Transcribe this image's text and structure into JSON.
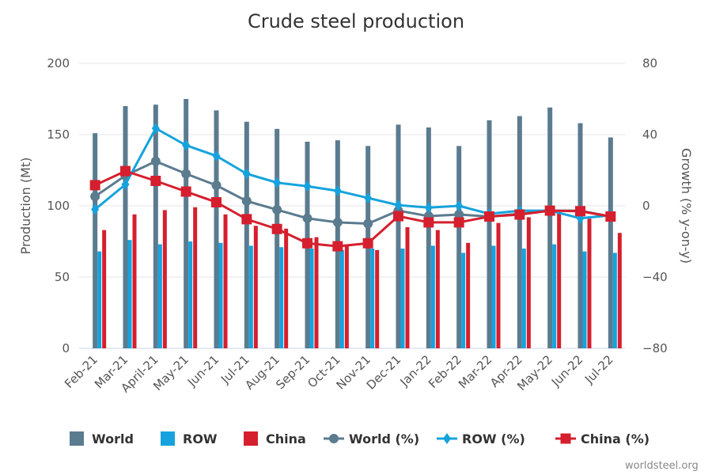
{
  "chart_data": {
    "type": "bar",
    "title": "Crude steel production",
    "ylabel": "Production (Mt)",
    "y2label": "Growth (% y-on-y)",
    "ylim": [
      0,
      200
    ],
    "y2lim": [
      -80,
      80
    ],
    "yticks": [
      "0",
      "50",
      "100",
      "150",
      "200"
    ],
    "y2ticks": [
      "−80",
      "−40",
      "0",
      "40",
      "80"
    ],
    "categories": [
      "Feb-21",
      "Mar-21",
      "April-21",
      "May-21",
      "Jun-21",
      "Jul-21",
      "Aug-21",
      "Sep-21",
      "Oct-21",
      "Nov-21",
      "Dec-21",
      "Jan-22",
      "Feb-22",
      "Mar-22",
      "Apr-22",
      "May-22",
      "Jun-22",
      "Jul-22"
    ],
    "series": [
      {
        "name": "World",
        "kind": "bar",
        "axis": "left",
        "color": "#5b7b8f",
        "values": [
          151,
          170,
          171,
          175,
          167,
          159,
          154,
          145,
          146,
          142,
          157,
          155,
          142,
          160,
          163,
          169,
          158,
          148
        ]
      },
      {
        "name": "ROW",
        "kind": "bar",
        "axis": "left",
        "color": "#16a3dd",
        "values": [
          68,
          76,
          73,
          75,
          74,
          72,
          71,
          70,
          69,
          70,
          70,
          72,
          67,
          72,
          70,
          73,
          68,
          67
        ]
      },
      {
        "name": "China",
        "kind": "bar",
        "axis": "left",
        "color": "#d51f2e",
        "values": [
          83,
          94,
          97,
          99,
          94,
          86,
          84,
          78,
          73,
          69,
          85,
          83,
          74,
          88,
          92,
          95,
          91,
          81
        ]
      },
      {
        "name": "World (%)",
        "kind": "line",
        "marker": "circle",
        "axis": "right",
        "color": "#5b7b8f",
        "values": [
          5.3,
          17,
          25,
          18,
          11.5,
          2.7,
          -2.2,
          -7,
          -9.3,
          -10,
          -2.7,
          -5.8,
          -4.9,
          -6,
          -4.5,
          -2.7,
          -2.7,
          -6
        ]
      },
      {
        "name": "ROW (%)",
        "kind": "line",
        "marker": "diamond",
        "axis": "right",
        "color": "#16a3dd",
        "values": [
          -2,
          12,
          43.5,
          34,
          28,
          18,
          13,
          11,
          8.4,
          4.4,
          0.4,
          -1,
          0,
          -4.5,
          -2.7,
          -2.7,
          -7,
          -5.3
        ]
      },
      {
        "name": "China (%)",
        "kind": "line",
        "marker": "square",
        "axis": "right",
        "color": "#d51f2e",
        "values": [
          11.6,
          19.5,
          14,
          8,
          2,
          -7.5,
          -13,
          -21,
          -22.7,
          -21,
          -5.8,
          -9.3,
          -9.3,
          -6,
          -4.9,
          -2.7,
          -3,
          -6
        ]
      }
    ],
    "grid": true,
    "legend": "bottom",
    "credit": "worldsteel.org"
  }
}
